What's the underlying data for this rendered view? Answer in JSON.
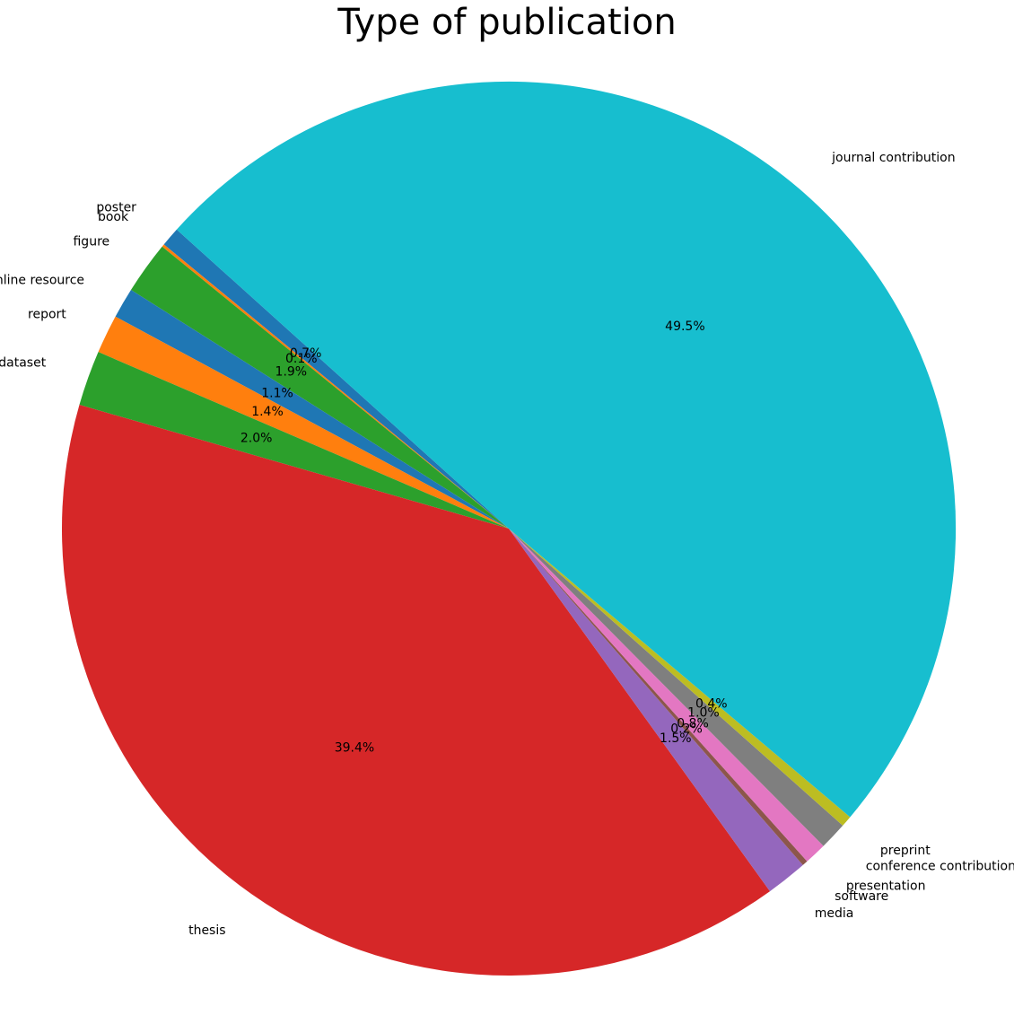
{
  "chart_data": {
    "type": "pie",
    "title": "Type of publication",
    "start_angle_deg": 138,
    "direction": "counterclockwise",
    "slices": [
      {
        "label": "poster",
        "value": 0.7,
        "pct_label": "0.7%",
        "color": "#1f77b4"
      },
      {
        "label": "book",
        "value": 0.1,
        "pct_label": "0.1%",
        "color": "#ff7f0e"
      },
      {
        "label": "figure",
        "value": 1.9,
        "pct_label": "1.9%",
        "color": "#2ca02c"
      },
      {
        "label": "online resource",
        "value": 1.1,
        "pct_label": "1.1%",
        "color": "#1f77b4"
      },
      {
        "label": "report",
        "value": 1.4,
        "pct_label": "1.4%",
        "color": "#ff7f0e"
      },
      {
        "label": "dataset",
        "value": 2.0,
        "pct_label": "2.0%",
        "color": "#2ca02c"
      },
      {
        "label": "thesis",
        "value": 39.4,
        "pct_label": "39.4%",
        "color": "#d62728"
      },
      {
        "label": "media",
        "value": 1.5,
        "pct_label": "1.5%",
        "color": "#9467bd"
      },
      {
        "label": "software",
        "value": 0.2,
        "pct_label": "0.2%",
        "color": "#8c564b"
      },
      {
        "label": "presentation",
        "value": 0.8,
        "pct_label": "0.8%",
        "color": "#e377c2"
      },
      {
        "label": "conference contribution",
        "value": 1.0,
        "pct_label": "1.0%",
        "color": "#7f7f7f"
      },
      {
        "label": "preprint",
        "value": 0.4,
        "pct_label": "0.4%",
        "color": "#bcbd22"
      },
      {
        "label": "journal contribution",
        "value": 49.5,
        "pct_label": "49.5%",
        "color": "#17becf"
      }
    ]
  }
}
